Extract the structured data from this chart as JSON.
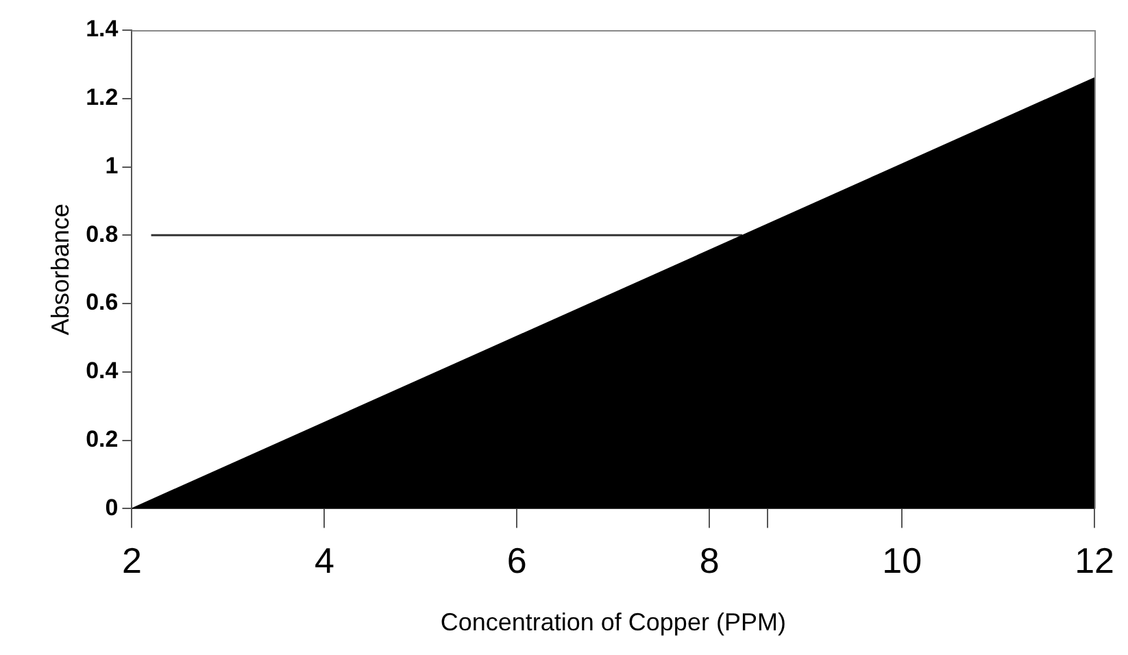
{
  "chart_data": {
    "type": "area",
    "xlabel": "Concentration of Copper (PPM)",
    "ylabel": "Absorbance",
    "series": [
      {
        "color": "#000000",
        "x": [
          2,
          12
        ],
        "values": [
          0,
          1.26
        ]
      },
      {
        "type": "line",
        "color": "#333333",
        "x": [
          2.2,
          8.34
        ],
        "values": [
          0.8,
          0.8
        ]
      }
    ],
    "xlim": [
      2,
      12
    ],
    "xticks": [
      2,
      4,
      6,
      8,
      {
        "value": 8.6,
        "label": null
      },
      10,
      12
    ],
    "ylim": [
      0,
      1.4
    ],
    "yticks": [
      0,
      0.2,
      0.4,
      0.6,
      0.8,
      1,
      1.2,
      1.4
    ],
    "grid": false,
    "legend": false,
    "marker": "none",
    "line_style": "solid"
  }
}
